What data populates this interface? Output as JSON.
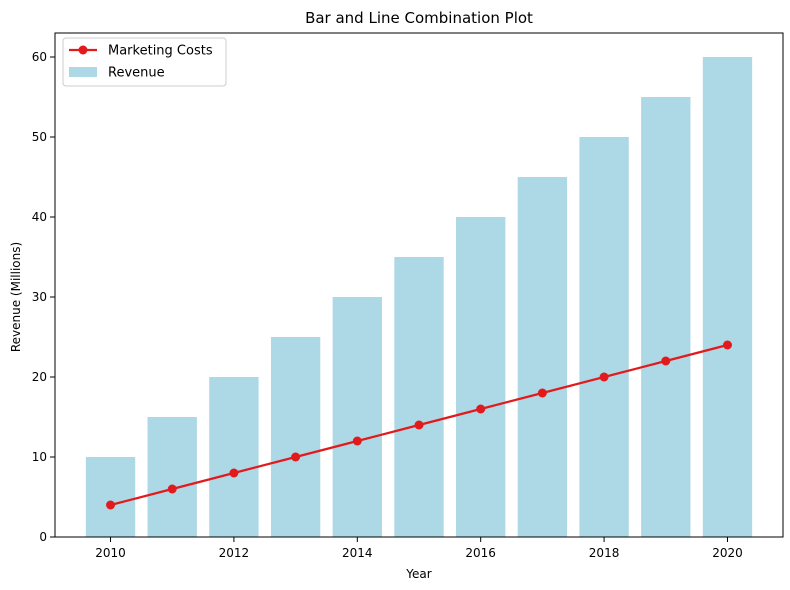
{
  "chart_data": {
    "type": "bar",
    "title": "Bar and Line Combination Plot",
    "xlabel": "Year",
    "ylabel": "Revenue (Millions)",
    "x": [
      2010,
      2011,
      2012,
      2013,
      2014,
      2015,
      2016,
      2017,
      2018,
      2019,
      2020
    ],
    "x_ticks": [
      2010,
      2012,
      2014,
      2016,
      2018,
      2020
    ],
    "y_ticks": [
      0,
      10,
      20,
      30,
      40,
      50,
      60
    ],
    "xlim": [
      2009.1,
      2020.9
    ],
    "ylim": [
      0,
      63
    ],
    "grid": false,
    "legend_position": "upper-left",
    "series": [
      {
        "name": "Marketing Costs",
        "type": "line",
        "color": "#e31a1c",
        "marker": "circle",
        "values": [
          4,
          6,
          8,
          10,
          12,
          14,
          16,
          18,
          20,
          22,
          24
        ]
      },
      {
        "name": "Revenue",
        "type": "bar",
        "color": "#add8e6",
        "values": [
          10,
          15,
          20,
          25,
          30,
          35,
          40,
          45,
          50,
          55,
          60
        ]
      }
    ]
  }
}
